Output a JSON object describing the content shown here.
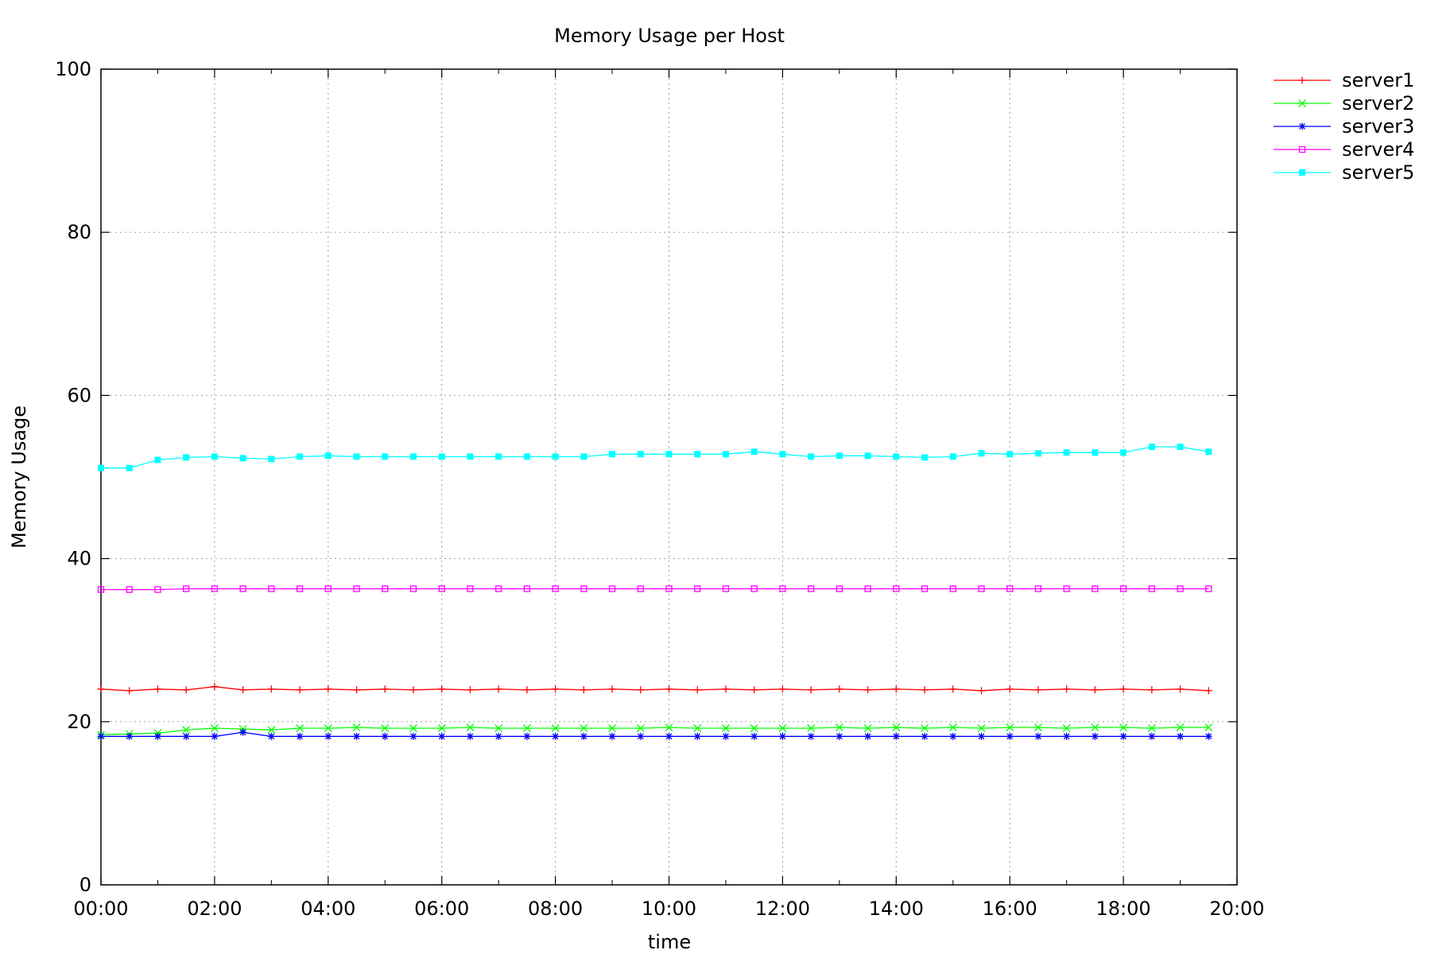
{
  "chart_data": {
    "type": "line",
    "title": "Memory Usage per Host",
    "xlabel": "time",
    "ylabel": "Memory Usage",
    "xlim": [
      "00:00",
      "20:00"
    ],
    "ylim": [
      0,
      100
    ],
    "x_ticks": [
      "00:00",
      "02:00",
      "04:00",
      "06:00",
      "08:00",
      "10:00",
      "12:00",
      "14:00",
      "16:00",
      "18:00",
      "20:00"
    ],
    "y_ticks": [
      0,
      20,
      40,
      60,
      80,
      100
    ],
    "grid": true,
    "legend_position": "outside-top-right",
    "x": [
      "00:00",
      "00:30",
      "01:00",
      "01:30",
      "02:00",
      "02:30",
      "03:00",
      "03:30",
      "04:00",
      "04:30",
      "05:00",
      "05:30",
      "06:00",
      "06:30",
      "07:00",
      "07:30",
      "08:00",
      "08:30",
      "09:00",
      "09:30",
      "10:00",
      "10:30",
      "11:00",
      "11:30",
      "12:00",
      "12:30",
      "13:00",
      "13:30",
      "14:00",
      "14:30",
      "15:00",
      "15:30",
      "16:00",
      "16:30",
      "17:00",
      "17:30",
      "18:00",
      "18:30",
      "19:00",
      "19:30"
    ],
    "series": [
      {
        "name": "server1",
        "color": "#ff0000",
        "marker": "plus",
        "values": [
          24.0,
          23.8,
          24.0,
          23.9,
          24.3,
          23.9,
          24.0,
          23.9,
          24.0,
          23.9,
          24.0,
          23.9,
          24.0,
          23.9,
          24.0,
          23.9,
          24.0,
          23.9,
          24.0,
          23.9,
          24.0,
          23.9,
          24.0,
          23.9,
          24.0,
          23.9,
          24.0,
          23.9,
          24.0,
          23.9,
          24.0,
          23.8,
          24.0,
          23.9,
          24.0,
          23.9,
          24.0,
          23.9,
          24.0,
          23.8
        ]
      },
      {
        "name": "server2",
        "color": "#00ff00",
        "marker": "cross",
        "values": [
          18.4,
          18.5,
          18.6,
          19.0,
          19.2,
          19.1,
          19.0,
          19.2,
          19.2,
          19.3,
          19.2,
          19.2,
          19.2,
          19.3,
          19.2,
          19.2,
          19.2,
          19.2,
          19.2,
          19.2,
          19.3,
          19.2,
          19.2,
          19.2,
          19.2,
          19.2,
          19.3,
          19.2,
          19.3,
          19.2,
          19.3,
          19.2,
          19.3,
          19.3,
          19.2,
          19.3,
          19.3,
          19.2,
          19.3,
          19.3
        ]
      },
      {
        "name": "server3",
        "color": "#0000ff",
        "marker": "star",
        "values": [
          18.2,
          18.2,
          18.2,
          18.2,
          18.2,
          18.7,
          18.2,
          18.2,
          18.2,
          18.2,
          18.2,
          18.2,
          18.2,
          18.2,
          18.2,
          18.2,
          18.2,
          18.2,
          18.2,
          18.2,
          18.2,
          18.2,
          18.2,
          18.2,
          18.2,
          18.2,
          18.2,
          18.2,
          18.2,
          18.2,
          18.2,
          18.2,
          18.2,
          18.2,
          18.2,
          18.2,
          18.2,
          18.2,
          18.2,
          18.2
        ]
      },
      {
        "name": "server4",
        "color": "#ff00ff",
        "marker": "open-square",
        "values": [
          36.2,
          36.2,
          36.2,
          36.3,
          36.3,
          36.3,
          36.3,
          36.3,
          36.3,
          36.3,
          36.3,
          36.3,
          36.3,
          36.3,
          36.3,
          36.3,
          36.3,
          36.3,
          36.3,
          36.3,
          36.3,
          36.3,
          36.3,
          36.3,
          36.3,
          36.3,
          36.3,
          36.3,
          36.3,
          36.3,
          36.3,
          36.3,
          36.3,
          36.3,
          36.3,
          36.3,
          36.3,
          36.3,
          36.3,
          36.3
        ]
      },
      {
        "name": "server5",
        "color": "#00ffff",
        "marker": "filled-square",
        "values": [
          51.1,
          51.1,
          52.1,
          52.4,
          52.5,
          52.3,
          52.2,
          52.5,
          52.6,
          52.5,
          52.5,
          52.5,
          52.5,
          52.5,
          52.5,
          52.5,
          52.5,
          52.5,
          52.8,
          52.8,
          52.8,
          52.8,
          52.8,
          53.1,
          52.8,
          52.5,
          52.6,
          52.6,
          52.5,
          52.4,
          52.5,
          52.9,
          52.8,
          52.9,
          53.0,
          53.0,
          53.0,
          53.7,
          53.7,
          53.1
        ]
      }
    ]
  }
}
